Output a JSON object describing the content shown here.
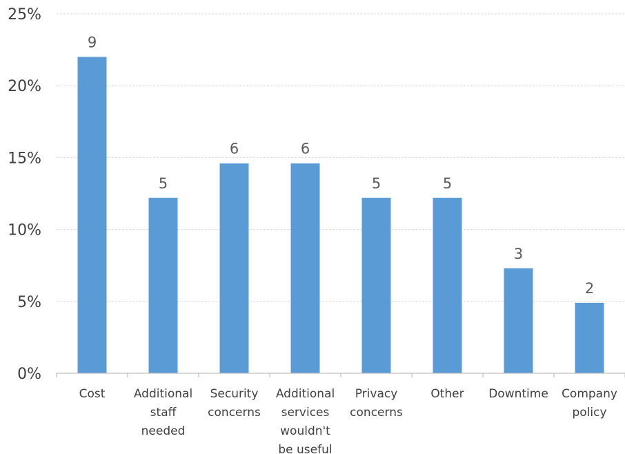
{
  "chart_data": {
    "type": "bar",
    "title": "",
    "xlabel": "",
    "ylabel": "",
    "categories": [
      [
        "Cost"
      ],
      [
        "Additional",
        "staff",
        "needed"
      ],
      [
        "Security",
        "concerns"
      ],
      [
        "Additional",
        "services",
        "wouldn't",
        "be useful"
      ],
      [
        "Privacy",
        "concerns"
      ],
      [
        "Other"
      ],
      [
        "Downtime"
      ],
      [
        "Company",
        "policy"
      ]
    ],
    "values": [
      22,
      12.2,
      14.6,
      14.6,
      12.2,
      12.2,
      7.3,
      4.9
    ],
    "data_labels": [
      "9",
      "5",
      "6",
      "6",
      "5",
      "5",
      "3",
      "2"
    ],
    "ylim": [
      0,
      25
    ],
    "yticks": [
      "0%",
      "5%",
      "10%",
      "15%",
      "20%",
      "25%"
    ],
    "ytick_values": [
      0,
      5,
      10,
      15,
      20,
      25
    ],
    "grid": true,
    "legend": "none",
    "bar_color": "#5b9bd5"
  }
}
